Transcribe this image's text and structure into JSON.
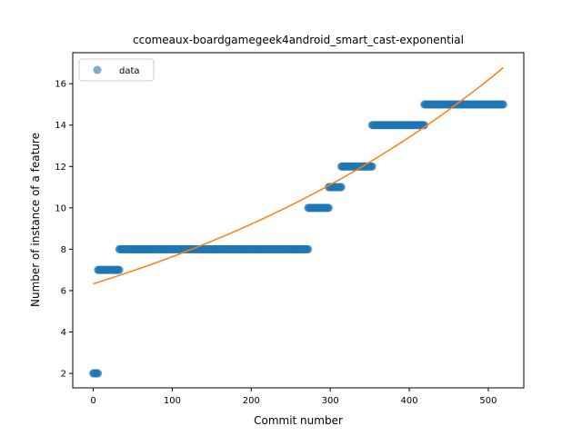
{
  "chart_data": {
    "type": "scatter",
    "title": "ccomeaux-boardgamegeek4android_smart_cast-exponential",
    "xlabel": "Commit number",
    "ylabel": "Number of instance of a feature",
    "xlim": [
      -25.9,
      544.9
    ],
    "ylim": [
      1.3,
      17.5
    ],
    "xticks": [
      0,
      100,
      200,
      300,
      400,
      500
    ],
    "yticks": [
      2,
      4,
      6,
      8,
      10,
      12,
      14,
      16
    ],
    "grid": false,
    "legend": {
      "position": "upper-left",
      "entries": [
        "data"
      ]
    },
    "series": [
      {
        "name": "data",
        "kind": "scatter",
        "color": "#1f77b4",
        "alpha": 0.6,
        "segments": [
          {
            "x_start": 0,
            "x_end": 6,
            "y": 2
          },
          {
            "x_start": 6,
            "x_end": 33,
            "y": 7
          },
          {
            "x_start": 33,
            "x_end": 272,
            "y": 8
          },
          {
            "x_start": 272,
            "x_end": 298,
            "y": 10
          },
          {
            "x_start": 298,
            "x_end": 314,
            "y": 11
          },
          {
            "x_start": 314,
            "x_end": 353,
            "y": 12
          },
          {
            "x_start": 353,
            "x_end": 419,
            "y": 14
          },
          {
            "x_start": 419,
            "x_end": 519,
            "y": 15
          }
        ]
      },
      {
        "name": "",
        "kind": "line",
        "color": "#ff7f0e",
        "model": "exponential",
        "a": 6.33,
        "b": 0.001878,
        "x_range": [
          0,
          519
        ]
      }
    ]
  }
}
